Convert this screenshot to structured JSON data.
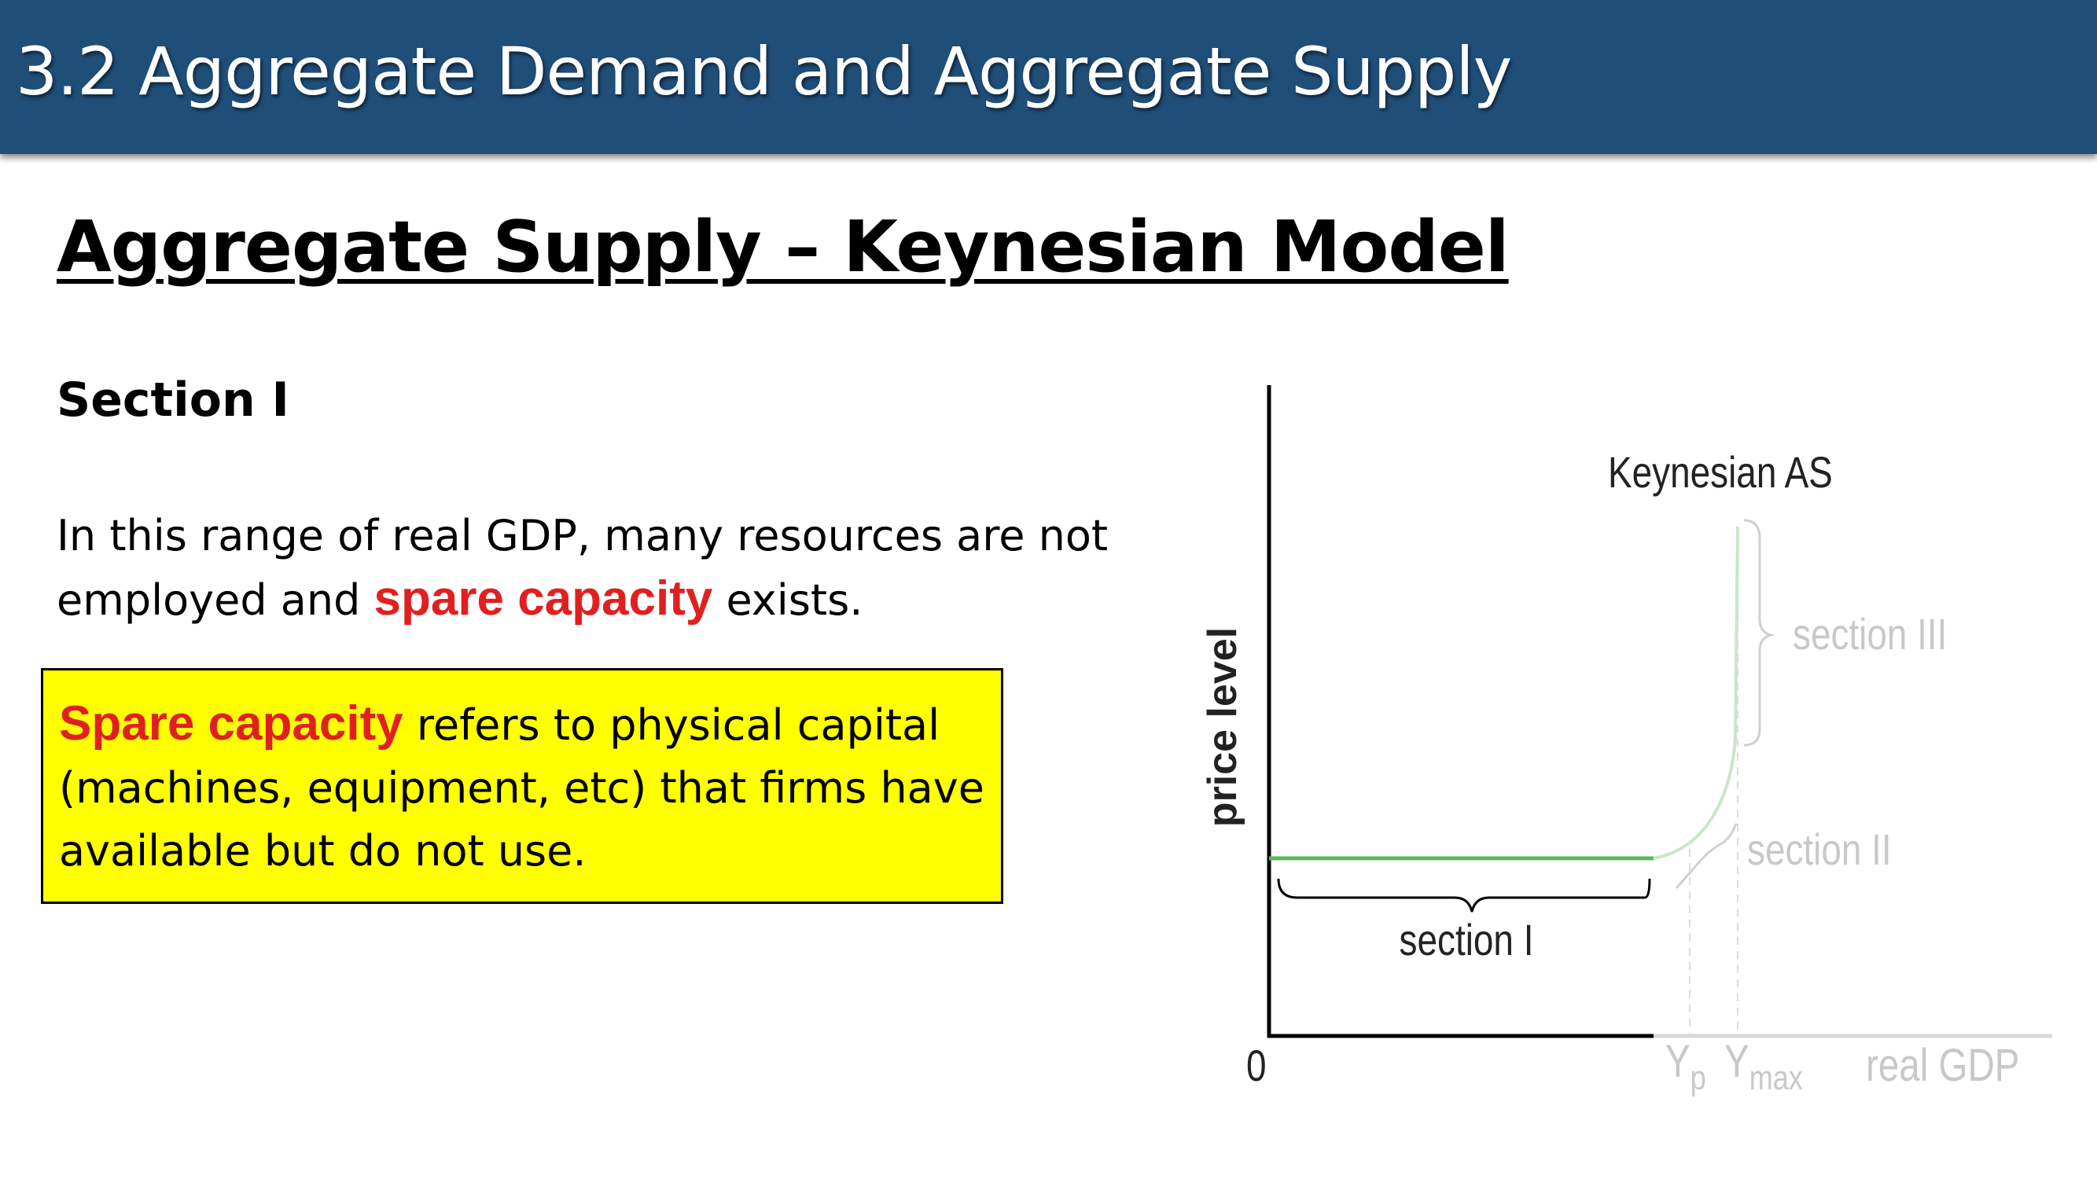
{
  "header": {
    "title": "3.2 Aggregate Demand and Aggregate Supply"
  },
  "slide": {
    "title": "Aggregate Supply – Keynesian Model",
    "section_heading": "Section I",
    "body": {
      "part1": "In this range of real GDP, many resources are not employed and ",
      "highlight": "spare capacity",
      "part2": " exists."
    },
    "definition": {
      "highlight": "Spare capacity",
      "rest": " refers to physical capital (machines, equipment, etc) that firms have available but do not use."
    }
  },
  "diagram": {
    "curve_label": "Keynesian AS",
    "y_axis_label": "price level",
    "x_axis_label": "real GDP",
    "origin_label": "0",
    "yp_label": "Y",
    "yp_sub": "p",
    "ymax_label": "Y",
    "ymax_sub": "max",
    "section1_label": "section I",
    "section2_label": "section II",
    "section3_label": "section III",
    "colors": {
      "curve": "#5cb85c",
      "curve_faded": "#c8e6c9",
      "faded_text": "#c8c8c8",
      "axis": "#000000"
    }
  }
}
